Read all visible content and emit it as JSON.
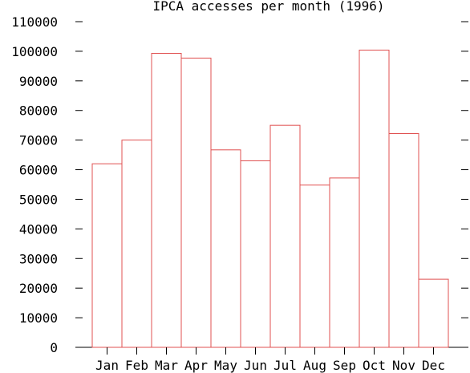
{
  "chart_data": {
    "type": "bar",
    "title": "IPCA accesses per month (1996)",
    "xlabel": "",
    "ylabel": "",
    "categories": [
      "Jan",
      "Feb",
      "Mar",
      "Apr",
      "May",
      "Jun",
      "Jul",
      "Aug",
      "Sep",
      "Oct",
      "Nov",
      "Dec"
    ],
    "values": [
      62000,
      70000,
      99300,
      97700,
      66700,
      63000,
      75000,
      54800,
      57200,
      100400,
      72200,
      23000
    ],
    "ylim": [
      0,
      110000
    ],
    "yticks": [
      0,
      10000,
      20000,
      30000,
      40000,
      50000,
      60000,
      70000,
      80000,
      90000,
      100000,
      110000
    ],
    "grid": false,
    "bar_color": "#e05050"
  }
}
